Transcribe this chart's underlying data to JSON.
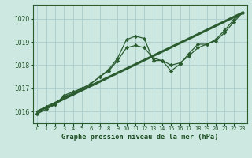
{
  "title": "Graphe pression niveau de la mer (hPa)",
  "bg_color": "#cce8e0",
  "plot_bg_color": "#cce8e0",
  "grid_color": "#aacccc",
  "line_color": "#2a5c30",
  "text_color": "#1a4a20",
  "xlim": [
    -0.5,
    23.5
  ],
  "ylim": [
    1015.5,
    1020.6
  ],
  "yticks": [
    1016,
    1017,
    1018,
    1019,
    1020
  ],
  "xticks": [
    0,
    1,
    2,
    3,
    4,
    5,
    6,
    7,
    8,
    9,
    10,
    11,
    12,
    13,
    14,
    15,
    16,
    17,
    18,
    19,
    20,
    21,
    22,
    23
  ],
  "series_wavy": {
    "x": [
      0,
      1,
      2,
      3,
      4,
      5,
      6,
      7,
      8,
      9,
      10,
      11,
      12,
      13,
      14,
      15,
      16,
      17,
      18,
      19,
      20,
      21,
      22,
      23
    ],
    "y": [
      1015.9,
      1016.2,
      1016.3,
      1016.65,
      1016.8,
      1017.0,
      1017.2,
      1017.5,
      1017.8,
      1018.3,
      1019.1,
      1019.25,
      1019.15,
      1018.2,
      1018.2,
      1017.75,
      1018.05,
      1018.5,
      1018.9,
      1018.9,
      1019.1,
      1019.5,
      1019.95,
      1020.25
    ]
  },
  "series_smooth": {
    "x": [
      0,
      1,
      2,
      3,
      4,
      5,
      6,
      7,
      8,
      9,
      10,
      11,
      12,
      13,
      14,
      15,
      16,
      17,
      18,
      19,
      20,
      21,
      22,
      23
    ],
    "y": [
      1015.9,
      1016.1,
      1016.3,
      1016.7,
      1016.85,
      1017.0,
      1017.2,
      1017.5,
      1017.75,
      1018.2,
      1018.75,
      1018.85,
      1018.75,
      1018.3,
      1018.2,
      1018.0,
      1018.1,
      1018.4,
      1018.75,
      1018.9,
      1019.05,
      1019.4,
      1019.85,
      1020.25
    ]
  },
  "trend": {
    "x": [
      0,
      23
    ],
    "y": [
      1016.0,
      1020.25
    ]
  }
}
